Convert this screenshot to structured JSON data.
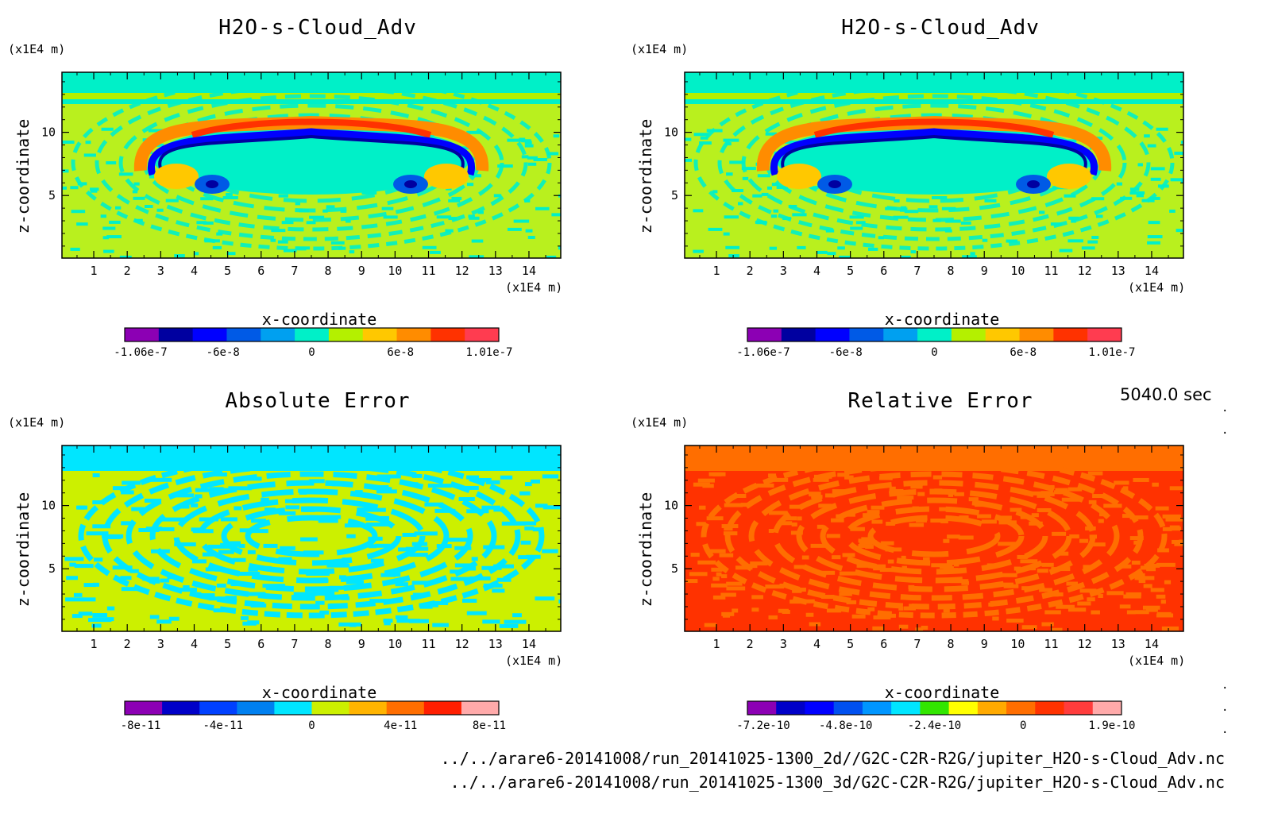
{
  "time_label": "5040.0 sec",
  "footer": {
    "line1": "../../arare6-20141008/run_20141025-1300_2d//G2C-C2R-R2G/jupiter_H2O-s-Cloud_Adv.nc",
    "line2": "../../arare6-20141008/run_20141025-1300_3d/G2C-C2R-R2G/jupiter_H2O-s-Cloud_Adv.nc"
  },
  "panels": [
    {
      "title": "H2O-s-Cloud_Adv",
      "y_unit": "(x1E4 m)",
      "x_unit": "(x1E4 m)",
      "xlabel": "x-coordinate",
      "ylabel": "z-coordinate"
    },
    {
      "title": "H2O-s-Cloud_Adv",
      "y_unit": "(x1E4 m)",
      "x_unit": "(x1E4 m)",
      "xlabel": "x-coordinate",
      "ylabel": "z-coordinate"
    },
    {
      "title": "Absolute Error",
      "y_unit": "(x1E4 m)",
      "x_unit": "(x1E4 m)",
      "xlabel": "x-coordinate",
      "ylabel": "z-coordinate"
    },
    {
      "title": "Relative Error",
      "y_unit": "(x1E4 m)",
      "x_unit": "(x1E4 m)",
      "xlabel": "x-coordinate",
      "ylabel": "z-coordinate"
    }
  ],
  "chart_data": [
    {
      "type": "heatmap",
      "title": "H2O-s-Cloud_Adv",
      "xlabel": "x-coordinate",
      "ylabel": "z-coordinate",
      "xlim": [
        0.05,
        14.95
      ],
      "ylim": [
        0.05,
        14.75
      ],
      "x_ticks": [
        1,
        2,
        3,
        4,
        5,
        6,
        7,
        8,
        9,
        10,
        11,
        12,
        13,
        14
      ],
      "y_ticks": [
        5,
        10
      ],
      "background": "#b9f01e",
      "colorbar": {
        "colors": [
          "#8c00b4",
          "#0000a0",
          "#0000ff",
          "#005ae6",
          "#00a0f0",
          "#00f0c8",
          "#b4f000",
          "#ffc800",
          "#ff8c00",
          "#ff3200",
          "#ff3c50"
        ],
        "tick_labels": [
          "-1.06e-7",
          "-6e-8",
          "0",
          "6e-8",
          "1.01e-7"
        ]
      }
    },
    {
      "type": "heatmap",
      "title": "H2O-s-Cloud_Adv",
      "xlabel": "x-coordinate",
      "ylabel": "z-coordinate",
      "xlim": [
        0.05,
        14.95
      ],
      "ylim": [
        0.05,
        14.75
      ],
      "x_ticks": [
        1,
        2,
        3,
        4,
        5,
        6,
        7,
        8,
        9,
        10,
        11,
        12,
        13,
        14
      ],
      "y_ticks": [
        5,
        10
      ],
      "background": "#b9f01e",
      "colorbar": {
        "colors": [
          "#8c00b4",
          "#0000a0",
          "#0000ff",
          "#005ae6",
          "#00a0f0",
          "#00f0c8",
          "#b4f000",
          "#ffc800",
          "#ff8c00",
          "#ff3200",
          "#ff3c50"
        ],
        "tick_labels": [
          "-1.06e-7",
          "-6e-8",
          "0",
          "6e-8",
          "1.01e-7"
        ]
      }
    },
    {
      "type": "heatmap",
      "title": "Absolute Error",
      "xlabel": "x-coordinate",
      "ylabel": "z-coordinate",
      "xlim": [
        0.05,
        14.95
      ],
      "ylim": [
        0.05,
        14.75
      ],
      "x_ticks": [
        1,
        2,
        3,
        4,
        5,
        6,
        7,
        8,
        9,
        10,
        11,
        12,
        13,
        14
      ],
      "y_ticks": [
        5,
        10
      ],
      "background": "#ccf000",
      "colorbar": {
        "colors": [
          "#8c00b4",
          "#0000c8",
          "#0040ff",
          "#0080f0",
          "#00e6ff",
          "#ccf000",
          "#ffb400",
          "#ff6e00",
          "#ff1e00",
          "#ffaaaa"
        ],
        "tick_labels": [
          "-8e-11",
          "-4e-11",
          "0",
          "4e-11",
          "8e-11"
        ]
      }
    },
    {
      "type": "heatmap",
      "title": "Relative Error",
      "xlabel": "x-coordinate",
      "ylabel": "z-coordinate",
      "xlim": [
        0.05,
        14.95
      ],
      "ylim": [
        0.05,
        14.75
      ],
      "x_ticks": [
        1,
        2,
        3,
        4,
        5,
        6,
        7,
        8,
        9,
        10,
        11,
        12,
        13,
        14
      ],
      "y_ticks": [
        5,
        10
      ],
      "background": "#ff3200",
      "colorbar": {
        "colors": [
          "#8c00b4",
          "#0000c8",
          "#0000ff",
          "#0050f0",
          "#0096ff",
          "#00e6ff",
          "#32e600",
          "#ffff00",
          "#ffaa00",
          "#ff6e00",
          "#ff3200",
          "#ff3c3c",
          "#ffaaaa"
        ],
        "tick_labels": [
          "-7.2e-10",
          "-4.8e-10",
          "-2.4e-10",
          "0",
          "1.9e-10"
        ]
      }
    }
  ]
}
